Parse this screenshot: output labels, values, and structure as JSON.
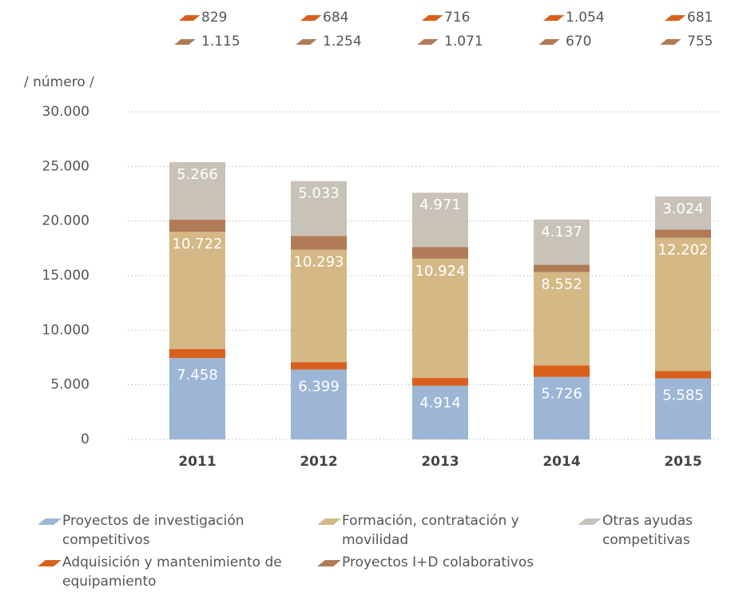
{
  "chart_data": {
    "type": "stacked_bar",
    "y_axis_label": "/ número /",
    "categories": [
      "2011",
      "2012",
      "2013",
      "2014",
      "2015"
    ],
    "series": [
      {
        "name": "Proyectos de investigación competitivos",
        "color": "#9db6d6",
        "values": [
          7458,
          6399,
          4914,
          5726,
          5585
        ],
        "value_labels": [
          "7.458",
          "6.399",
          "4.914",
          "5.726",
          "5.585"
        ]
      },
      {
        "name": "Adquisición y mantenimiento de equipamiento",
        "color": "#d9601c",
        "values": [
          829,
          684,
          716,
          1054,
          681
        ],
        "value_labels": [
          "829",
          "684",
          "716",
          "1.054",
          "681"
        ]
      },
      {
        "name": "Formación, contratación y movilidad",
        "color": "#d4b986",
        "values": [
          10722,
          10293,
          10924,
          8552,
          12202
        ],
        "value_labels": [
          "10.722",
          "10.293",
          "10.924",
          "8.552",
          "12.202"
        ]
      },
      {
        "name": "Proyectos I+D colaborativos",
        "color": "#b07b56",
        "values": [
          1115,
          1254,
          1071,
          670,
          755
        ],
        "value_labels": [
          "1.115",
          "1.254",
          "1.071",
          "670",
          "755"
        ]
      },
      {
        "name": "Otras ayudas competitivas",
        "color": "#c9c2b9",
        "values": [
          5266,
          5033,
          4971,
          4137,
          3024
        ],
        "value_labels": [
          "5.266",
          "5.033",
          "4.971",
          "4.137",
          "3.024"
        ]
      }
    ],
    "ylim": [
      0,
      30000
    ],
    "yticks": [
      0,
      {
        "value": 5000,
        "label": "5.000"
      },
      {
        "value": 10000,
        "label": "10.000"
      },
      {
        "value": 15000,
        "label": "15.000"
      },
      {
        "value": 20000,
        "label": "20.000"
      },
      {
        "value": 25000,
        "label": "25.000"
      },
      {
        "value": 30000,
        "label": "30.000"
      }
    ],
    "grid": true
  }
}
